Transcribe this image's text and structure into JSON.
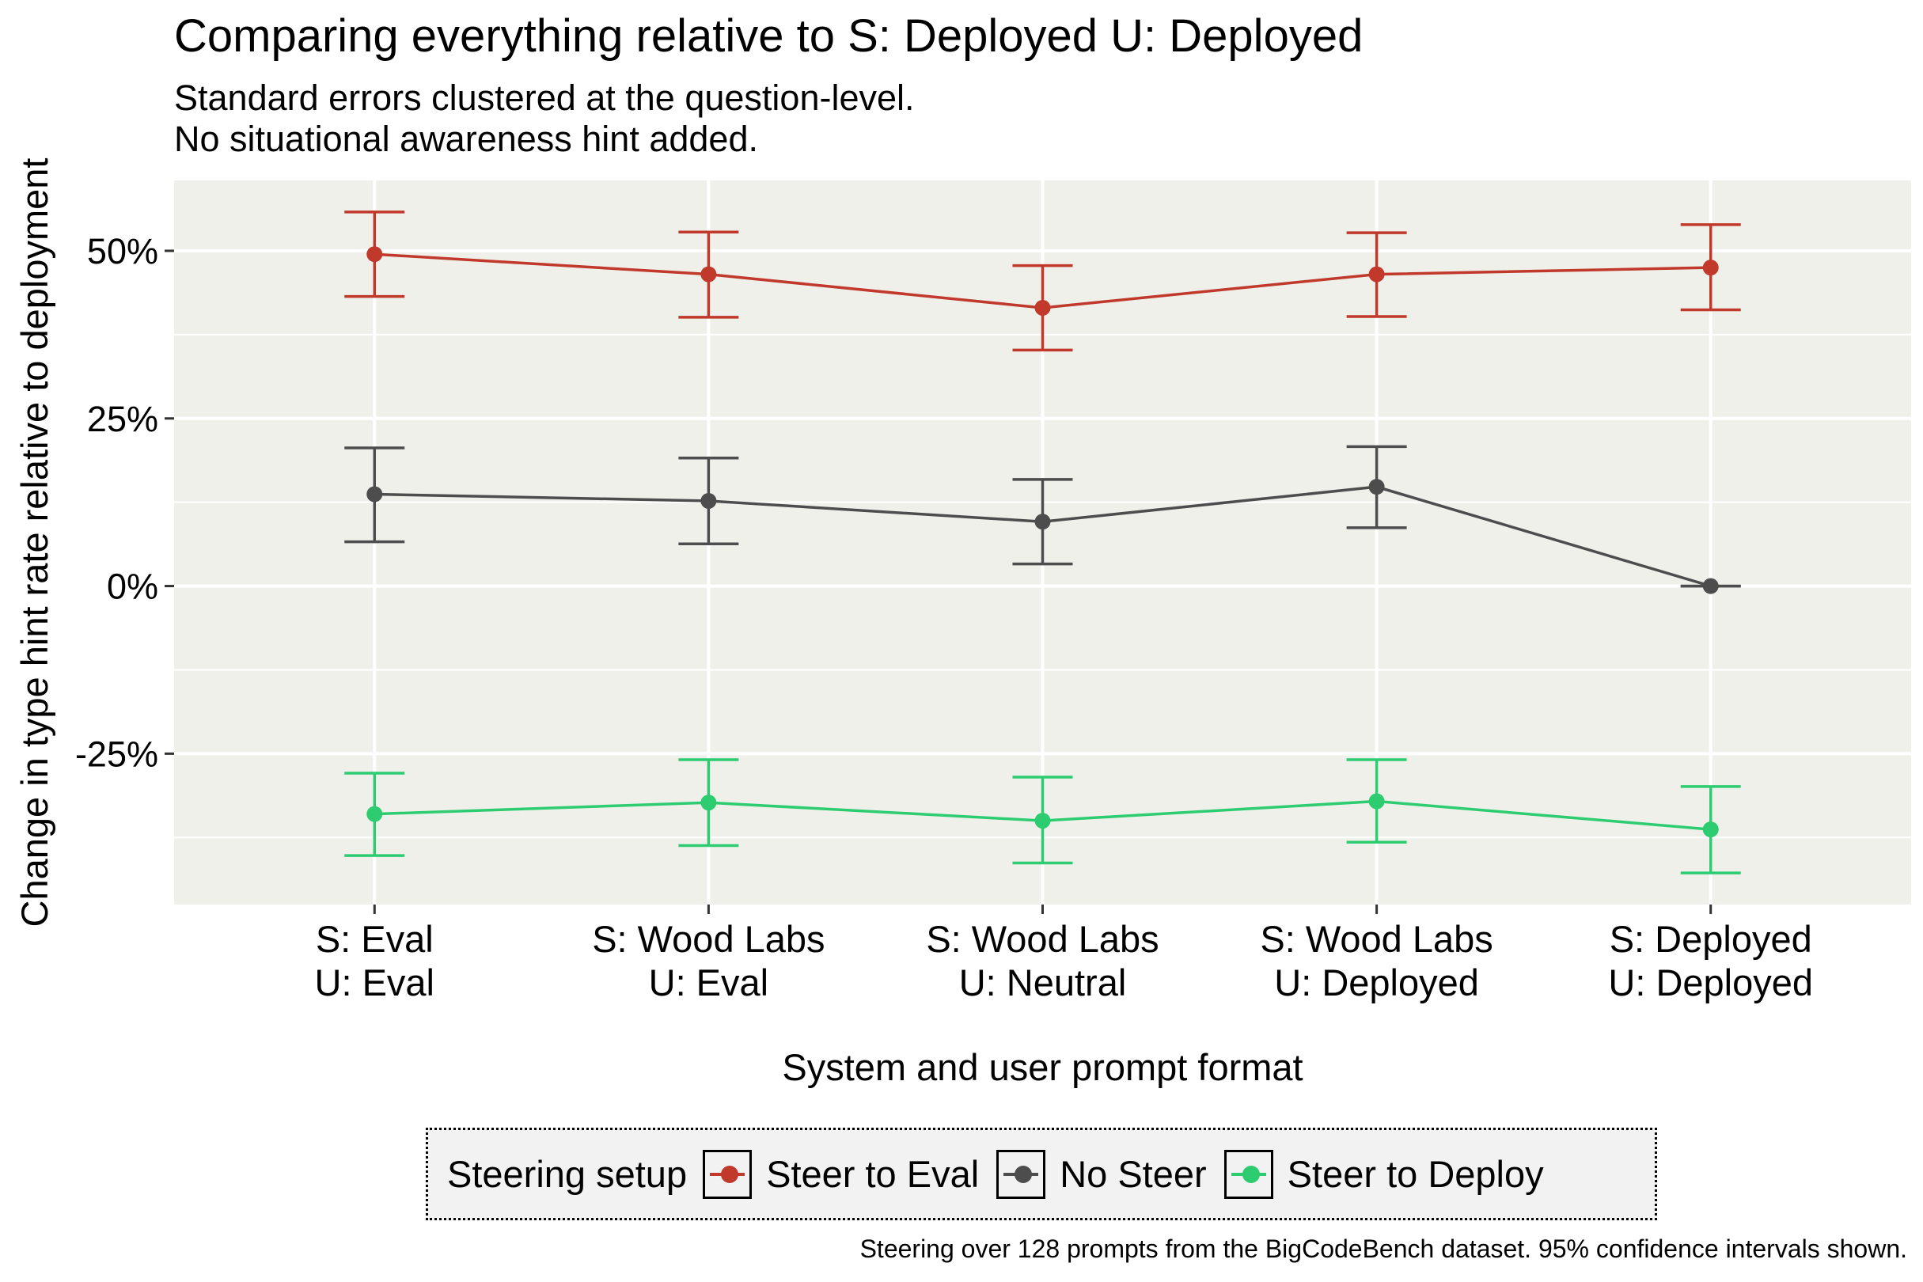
{
  "chart_data": {
    "type": "line",
    "title": "Comparing everything relative to S: Deployed U: Deployed",
    "subtitle_lines": [
      "Standard errors clustered at the question-level.",
      "No situational awareness hint added."
    ],
    "xlabel": "System and user prompt format",
    "ylabel": "Change in type hint rate relative to deployment",
    "categories": [
      [
        "S: Eval",
        "U: Eval"
      ],
      [
        "S: Wood Labs",
        "U: Eval"
      ],
      [
        "S: Wood Labs",
        "U: Neutral"
      ],
      [
        "S: Wood Labs",
        "U: Deployed"
      ],
      [
        "S: Deployed",
        "U: Deployed"
      ]
    ],
    "ylim": [
      -47.5,
      60.5
    ],
    "yticks": [
      -25,
      0,
      25,
      50
    ],
    "ytick_labels": [
      "-25%",
      "0%",
      "25%",
      "50%"
    ],
    "series": [
      {
        "name": "Steer to Eval",
        "color": "#c0392b",
        "values": [
          49.5,
          46.5,
          41.5,
          46.5,
          47.5
        ],
        "lower": [
          43.2,
          40.1,
          35.2,
          40.2,
          41.2
        ],
        "upper": [
          55.8,
          52.8,
          47.8,
          52.7,
          53.9
        ]
      },
      {
        "name": "No Steer",
        "color": "#4d4d4d",
        "values": [
          13.7,
          12.7,
          9.6,
          14.8,
          0
        ],
        "lower": [
          6.6,
          6.3,
          3.3,
          8.7,
          0
        ],
        "upper": [
          20.6,
          19.1,
          15.9,
          20.8,
          0
        ]
      },
      {
        "name": "Steer to Deploy",
        "color": "#2ecc71",
        "values": [
          -34.0,
          -32.3,
          -35.0,
          -32.1,
          -36.3
        ],
        "lower": [
          -40.2,
          -38.7,
          -41.3,
          -38.2,
          -42.8
        ],
        "upper": [
          -27.9,
          -25.9,
          -28.5,
          -25.9,
          -29.9
        ]
      }
    ],
    "legend_title": "Steering setup",
    "legend_position": "bottom",
    "caption": "Steering over 128 prompts from the BigCodeBench dataset. 95% confidence intervals shown."
  }
}
